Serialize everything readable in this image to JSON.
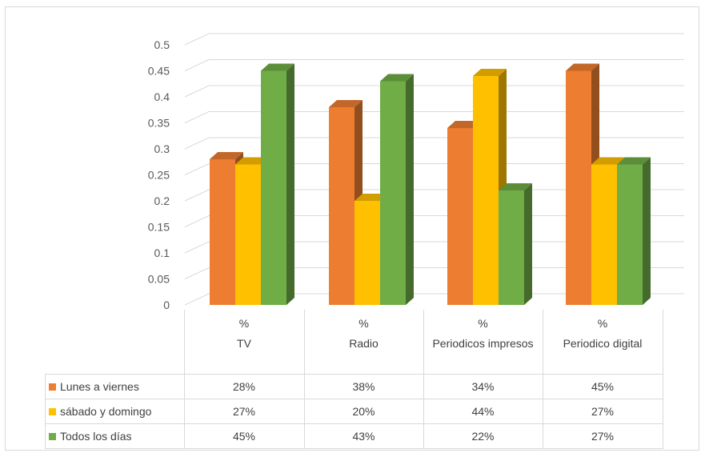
{
  "colors": {
    "lunes": "#ed7d31",
    "sabado": "#ffc000",
    "todos": "#70ad47"
  },
  "chart_data": {
    "type": "bar",
    "style": "3d-clustered-column",
    "categories": [
      {
        "prefix": "%",
        "name": "TV"
      },
      {
        "prefix": "%",
        "name": "Radio"
      },
      {
        "prefix": "%",
        "name": "Periodicos impresos"
      },
      {
        "prefix": "%",
        "name": "Periodico digital"
      }
    ],
    "series": [
      {
        "name": "Lunes a viernes",
        "color_key": "lunes",
        "values": [
          0.28,
          0.38,
          0.34,
          0.45
        ],
        "labels": [
          "28%",
          "38%",
          "34%",
          "45%"
        ]
      },
      {
        "name": "sábado y domingo",
        "color_key": "sabado",
        "values": [
          0.27,
          0.2,
          0.44,
          0.27
        ],
        "labels": [
          "27%",
          "20%",
          "44%",
          "27%"
        ]
      },
      {
        "name": "Todos los días",
        "color_key": "todos",
        "values": [
          0.45,
          0.43,
          0.22,
          0.27
        ],
        "labels": [
          "45%",
          "43%",
          "22%",
          "27%"
        ]
      }
    ],
    "ylim": [
      0,
      0.5
    ],
    "yticks": [
      "0",
      "0.05",
      "0.1",
      "0.15",
      "0.2",
      "0.25",
      "0.3",
      "0.35",
      "0.4",
      "0.45",
      "0.5"
    ],
    "grid": true,
    "legend": "data-table"
  }
}
